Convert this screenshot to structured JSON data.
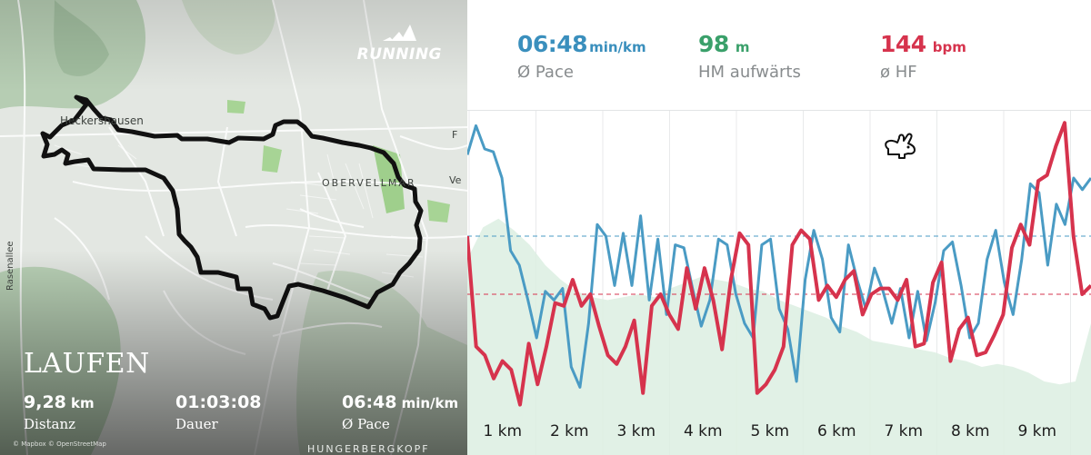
{
  "map": {
    "place_labels": [
      "Heckershausen",
      "OBERVELLMAR",
      "HUNGERBERGKOPF",
      "Rasenallee",
      "F",
      "Ve"
    ],
    "brand": "RUNNING",
    "activity_title": "LAUFEN",
    "stats": [
      {
        "value": "9,28",
        "unit": "km",
        "label": "Distanz"
      },
      {
        "value": "01:03:08",
        "unit": "",
        "label": "Dauer"
      },
      {
        "value": "06:48",
        "unit": "min/km",
        "label": "Ø Pace"
      }
    ],
    "attribution": "© Mapbox  © OpenStreetMap",
    "route_color": "#111111"
  },
  "summary": {
    "pace": {
      "value": "06:48",
      "unit": "min/km",
      "label": "Ø Pace",
      "color": "#3a8fbd"
    },
    "elevation": {
      "value": "98",
      "unit": "m",
      "label": "HM aufwärts",
      "color": "#3aa06a"
    },
    "heart_rate": {
      "value": "144",
      "unit": "bpm",
      "label": "ø HF",
      "color": "#d6334d"
    }
  },
  "chart_data": {
    "type": "line",
    "x_ticks": [
      "1 km",
      "2 km",
      "3 km",
      "4 km",
      "5 km",
      "6 km",
      "7 km",
      "8 km",
      "9 km"
    ],
    "icon": "rabbit-icon",
    "series": [
      {
        "name": "Pace",
        "color": "#4a9bc4",
        "average_level": 0.6,
        "values": [
          0.88,
          0.98,
          0.9,
          0.89,
          0.8,
          0.55,
          0.5,
          0.38,
          0.25,
          0.41,
          0.38,
          0.42,
          0.15,
          0.08,
          0.3,
          0.64,
          0.6,
          0.43,
          0.61,
          0.43,
          0.67,
          0.38,
          0.59,
          0.33,
          0.57,
          0.56,
          0.42,
          0.29,
          0.38,
          0.59,
          0.57,
          0.4,
          0.3,
          0.25,
          0.57,
          0.59,
          0.35,
          0.28,
          0.1,
          0.45,
          0.62,
          0.52,
          0.32,
          0.27,
          0.57,
          0.45,
          0.35,
          0.49,
          0.41,
          0.3,
          0.42,
          0.25,
          0.41,
          0.24,
          0.37,
          0.55,
          0.58,
          0.43,
          0.25,
          0.3,
          0.52,
          0.62,
          0.44,
          0.33,
          0.52,
          0.78,
          0.75,
          0.5,
          0.71,
          0.64,
          0.8,
          0.76,
          0.8
        ]
      },
      {
        "name": "HF",
        "color": "#d6334d",
        "average_level": 0.4,
        "values": [
          0.6,
          0.22,
          0.19,
          0.11,
          0.17,
          0.14,
          0.02,
          0.23,
          0.09,
          0.22,
          0.37,
          0.36,
          0.45,
          0.36,
          0.4,
          0.29,
          0.19,
          0.16,
          0.22,
          0.31,
          0.06,
          0.36,
          0.4,
          0.33,
          0.28,
          0.49,
          0.35,
          0.49,
          0.38,
          0.21,
          0.45,
          0.61,
          0.57,
          0.06,
          0.09,
          0.14,
          0.22,
          0.57,
          0.62,
          0.59,
          0.38,
          0.43,
          0.39,
          0.45,
          0.48,
          0.33,
          0.4,
          0.42,
          0.42,
          0.38,
          0.45,
          0.22,
          0.23,
          0.44,
          0.51,
          0.17,
          0.28,
          0.32,
          0.19,
          0.2,
          0.26,
          0.33,
          0.56,
          0.64,
          0.57,
          0.79,
          0.81,
          0.91,
          0.99,
          0.6,
          0.4,
          0.43
        ]
      },
      {
        "name": "Elevation",
        "color": "#dceee2",
        "average_level": null,
        "values": [
          0.52,
          0.63,
          0.66,
          0.62,
          0.57,
          0.5,
          0.45,
          0.41,
          0.39,
          0.38,
          0.39,
          0.4,
          0.39,
          0.42,
          0.44,
          0.46,
          0.45,
          0.44,
          0.42,
          0.41,
          0.38,
          0.36,
          0.34,
          0.32,
          0.29,
          0.27,
          0.24,
          0.23,
          0.22,
          0.21,
          0.2,
          0.18,
          0.17,
          0.15,
          0.16,
          0.15,
          0.13,
          0.1,
          0.09,
          0.1,
          0.3
        ]
      }
    ]
  }
}
